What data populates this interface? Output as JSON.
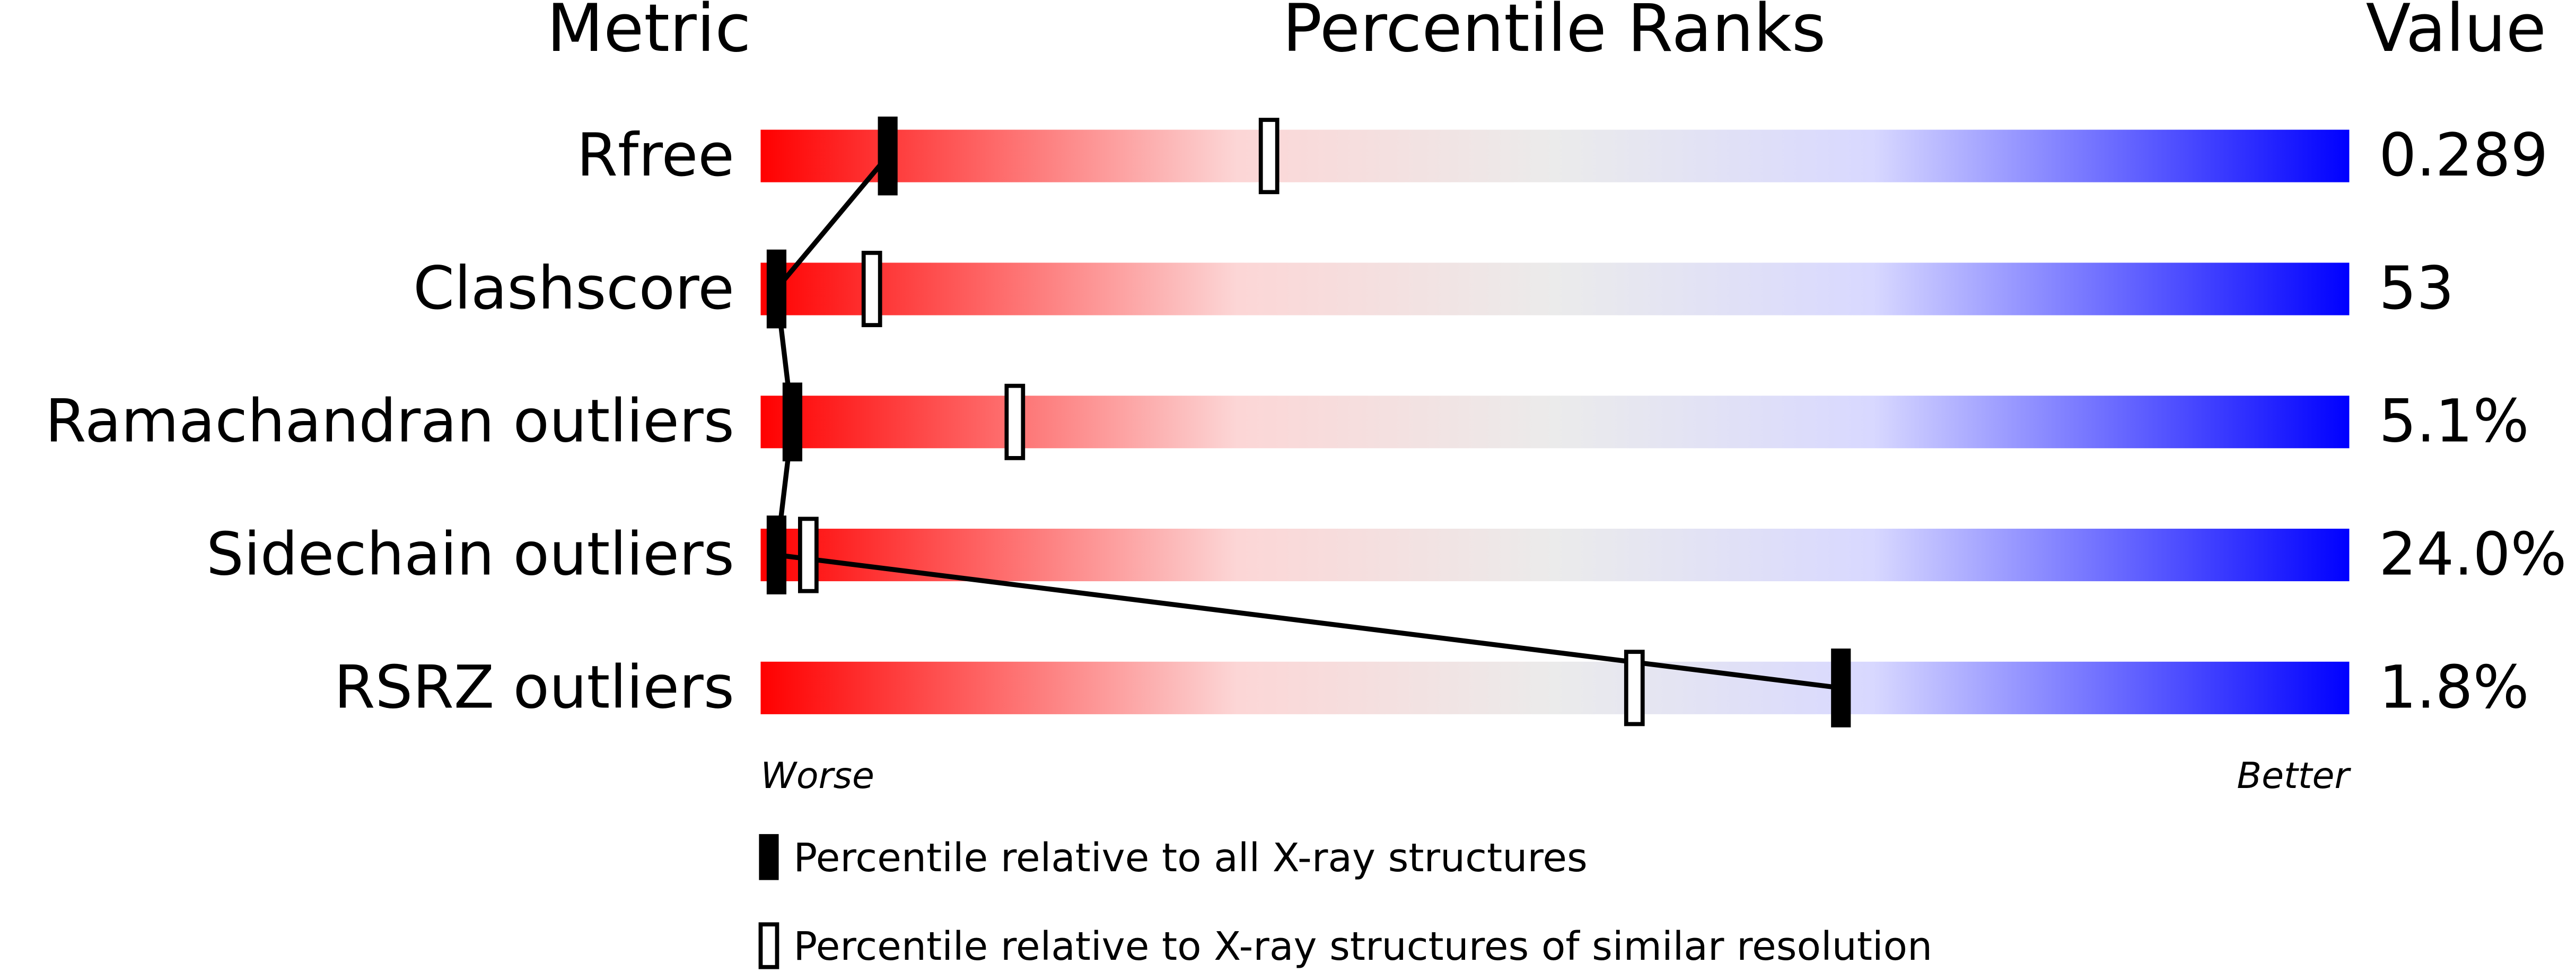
{
  "chart_data": {
    "type": "percentile",
    "headers": [
      "Metric",
      "Percentile Ranks",
      "Value"
    ],
    "categories": [
      "Rfree",
      "Clashscore",
      "Ramachandran outliers",
      "Sidechain outliers",
      "RSRZ outliers"
    ],
    "metric_values": [
      "0.289",
      "53",
      "5.1%",
      "24.0%",
      "1.8%"
    ],
    "series": [
      {
        "name": "Percentile relative to all X-ray structures",
        "color": "#000000",
        "style": "filled",
        "values": [
          8,
          1,
          2,
          1,
          68
        ]
      },
      {
        "name": "Percentile relative to X-ray structures of similar resolution",
        "color": "#000000",
        "style": "hollow",
        "values": [
          32,
          7,
          16,
          3,
          55
        ]
      }
    ],
    "xlim": [
      0,
      100
    ],
    "x_low_label": "Worse",
    "x_high_label": "Better"
  }
}
